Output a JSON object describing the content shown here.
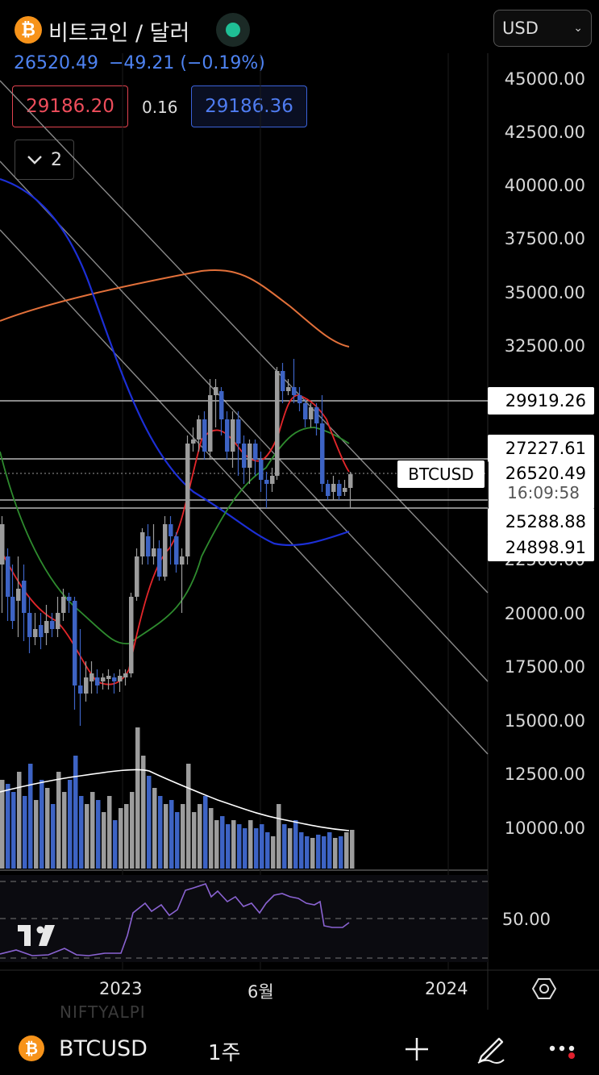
{
  "header": {
    "coin_icon": "bitcoin-icon",
    "title": "비트코인 / 달러",
    "status_color": "#1fbf95",
    "currency": "USD"
  },
  "quote": {
    "last": "26520.49",
    "change": "−49.21",
    "change_pct": "(−0.19%)",
    "sell": "29186.20",
    "spread": "0.16",
    "buy": "29186.36"
  },
  "indicators_toggle": {
    "count": "2"
  },
  "price_axis": {
    "labels": [
      "45000.00",
      "42500.00",
      "40000.00",
      "37500.00",
      "35000.00",
      "32500.00",
      "22500.00",
      "20000.00",
      "17500.00",
      "15000.00",
      "12500.00",
      "10000.00"
    ],
    "osc_label": "50.00"
  },
  "price_labels": {
    "hline_1": "29919.26",
    "hline_2": "27227.61",
    "symbol_tag": "BTCUSD",
    "current": "26520.49",
    "countdown": "16:09:58",
    "hline_3": "25288.88",
    "hline_4": "24898.91"
  },
  "time_axis": {
    "labels": [
      "2023",
      "6월",
      "2024"
    ]
  },
  "watermark": "NIFTYALPI",
  "bottom_bar": {
    "symbol": "BTCUSD",
    "timeframe": "1주",
    "icons": [
      "plus-icon",
      "pencil-icon",
      "more-icon"
    ]
  },
  "colors": {
    "up": "#9c9c9c",
    "down": "#3d63c4",
    "ma_red": "#e3262a",
    "ma_green": "#2e8b2e",
    "ma_blue": "#1c2fd6",
    "ma_orange": "#e2703a",
    "rsi": "#8a63d2"
  }
}
